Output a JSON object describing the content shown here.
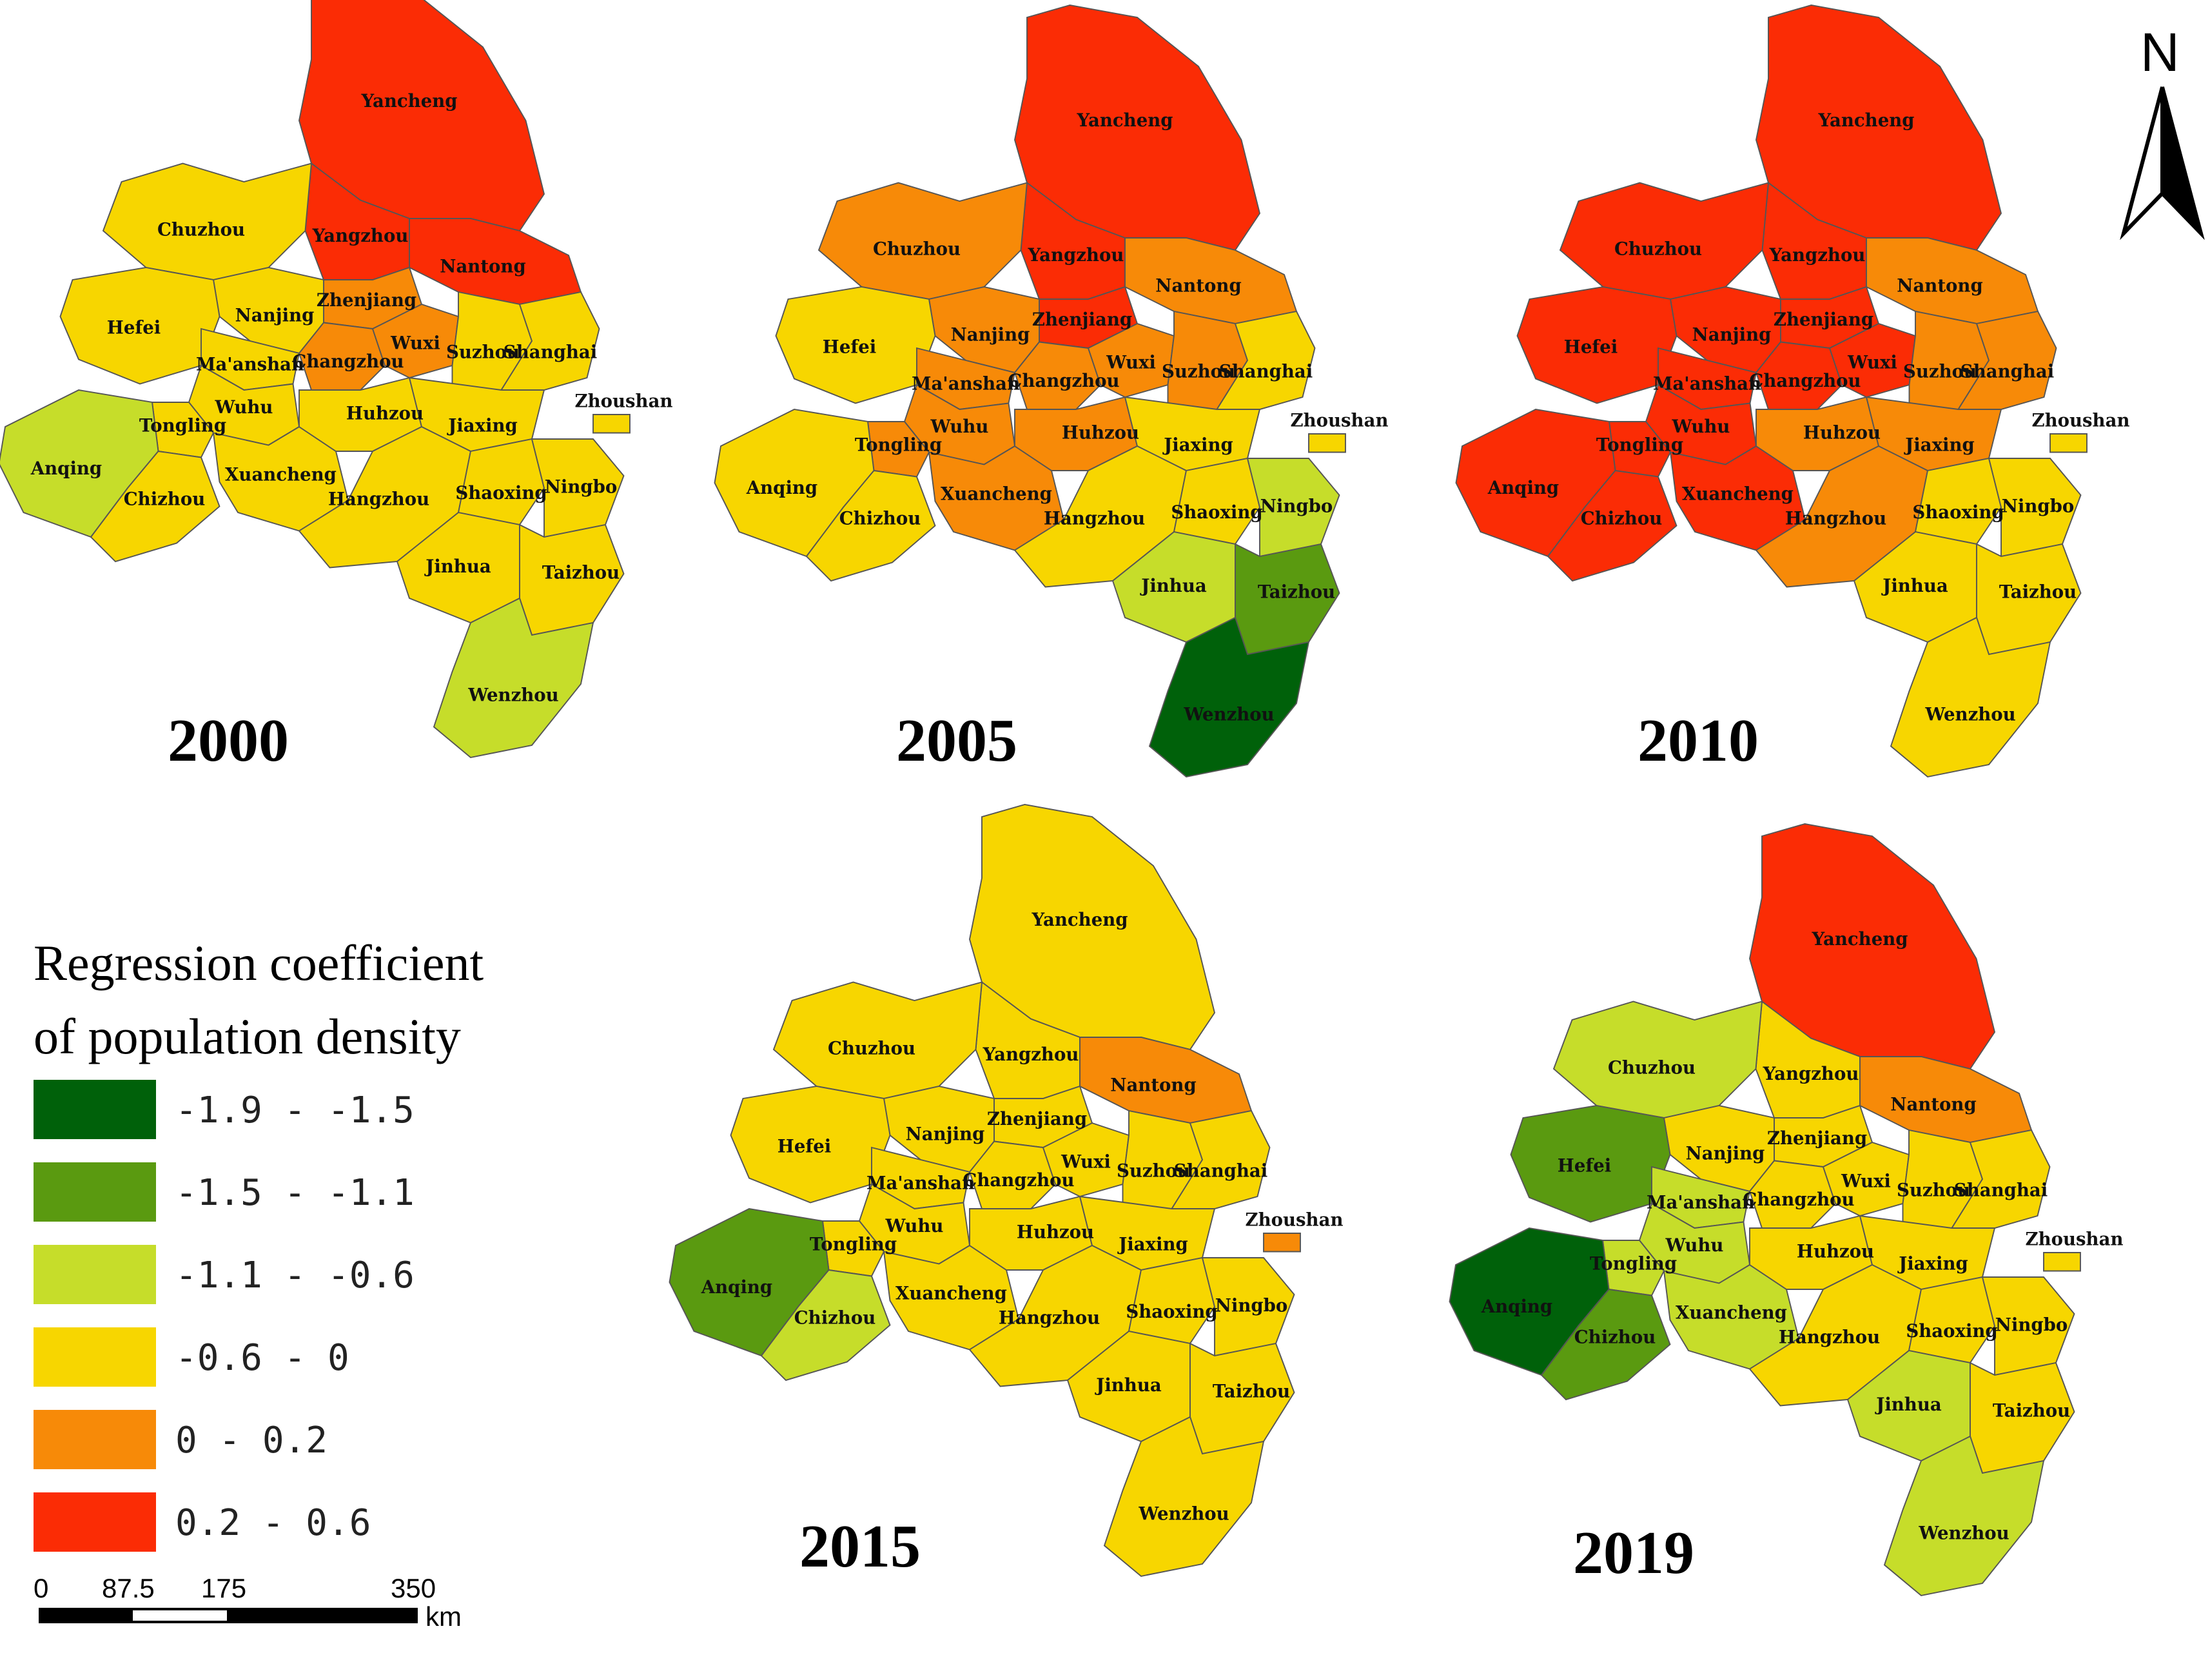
{
  "legend": {
    "title_line1": "Regression coefficient",
    "title_line2": "of population density",
    "classes": [
      {
        "range": "-1.9 - -1.5",
        "color": "#00610a"
      },
      {
        "range": "-1.5 - -1.1",
        "color": "#5a9a10"
      },
      {
        "range": "-1.1 - -0.6",
        "color": "#c6dd2a"
      },
      {
        "range": "-0.6 - 0",
        "color": "#f7d600"
      },
      {
        "range": "0 - 0.2",
        "color": "#f78a08"
      },
      {
        "range": "0.2 - 0.6",
        "color": "#fb2c05"
      }
    ]
  },
  "scale_bar": {
    "ticks": [
      "0",
      "87.5",
      "175",
      "350"
    ],
    "unit": "km"
  },
  "north_arrow": {
    "label": "N"
  },
  "maps": [
    {
      "year": "2000",
      "classes": {
        "Yancheng": 5,
        "Yangzhou": 5,
        "Nantong": 5,
        "Zhenjiang": 4,
        "Changzhou": 4,
        "Wuxi": 4,
        "Chuzhou": 3,
        "Nanjing": 3,
        "Hefei": 3,
        "Ma'anshan": 3,
        "Suzhou": 3,
        "Shanghai": 3,
        "Wuhu": 3,
        "Tongling": 3,
        "Xuancheng": 3,
        "Huhzou": 3,
        "Jiaxing": 3,
        "Anqing": 2,
        "Chizhou": 3,
        "Hangzhou": 3,
        "Shaoxing": 3,
        "Ningbo": 3,
        "Zhoushan": 3,
        "Jinhua": 3,
        "Taizhou": 3,
        "Wenzhou": 2
      }
    },
    {
      "year": "2005",
      "classes": {
        "Yancheng": 5,
        "Yangzhou": 5,
        "Nantong": 4,
        "Zhenjiang": 5,
        "Changzhou": 4,
        "Wuxi": 4,
        "Chuzhou": 4,
        "Nanjing": 4,
        "Hefei": 3,
        "Ma'anshan": 4,
        "Suzhou": 4,
        "Shanghai": 3,
        "Wuhu": 4,
        "Tongling": 4,
        "Xuancheng": 4,
        "Huhzou": 4,
        "Jiaxing": 3,
        "Anqing": 3,
        "Chizhou": 3,
        "Hangzhou": 3,
        "Shaoxing": 3,
        "Ningbo": 2,
        "Zhoushan": 3,
        "Jinhua": 2,
        "Taizhou": 1,
        "Wenzhou": 0
      }
    },
    {
      "year": "2010",
      "classes": {
        "Yancheng": 5,
        "Yangzhou": 5,
        "Nantong": 4,
        "Zhenjiang": 5,
        "Changzhou": 5,
        "Wuxi": 5,
        "Chuzhou": 5,
        "Nanjing": 5,
        "Hefei": 5,
        "Ma'anshan": 5,
        "Suzhou": 4,
        "Shanghai": 4,
        "Wuhu": 5,
        "Tongling": 5,
        "Xuancheng": 5,
        "Huhzou": 4,
        "Jiaxing": 4,
        "Anqing": 5,
        "Chizhou": 5,
        "Hangzhou": 4,
        "Shaoxing": 3,
        "Ningbo": 3,
        "Zhoushan": 3,
        "Jinhua": 3,
        "Taizhou": 3,
        "Wenzhou": 3
      }
    },
    {
      "year": "2015",
      "classes": {
        "Yancheng": 3,
        "Yangzhou": 3,
        "Nantong": 4,
        "Zhenjiang": 3,
        "Changzhou": 3,
        "Wuxi": 3,
        "Chuzhou": 3,
        "Nanjing": 3,
        "Hefei": 3,
        "Ma'anshan": 3,
        "Suzhou": 3,
        "Shanghai": 3,
        "Wuhu": 3,
        "Tongling": 3,
        "Xuancheng": 3,
        "Huhzou": 3,
        "Jiaxing": 3,
        "Anqing": 1,
        "Chizhou": 2,
        "Hangzhou": 3,
        "Shaoxing": 3,
        "Ningbo": 3,
        "Zhoushan": 4,
        "Jinhua": 3,
        "Taizhou": 3,
        "Wenzhou": 3
      }
    },
    {
      "year": "2019",
      "classes": {
        "Yancheng": 5,
        "Yangzhou": 3,
        "Nantong": 4,
        "Zhenjiang": 3,
        "Changzhou": 3,
        "Wuxi": 3,
        "Chuzhou": 2,
        "Nanjing": 3,
        "Hefei": 1,
        "Ma'anshan": 2,
        "Suzhou": 3,
        "Shanghai": 3,
        "Wuhu": 2,
        "Tongling": 2,
        "Xuancheng": 2,
        "Huhzou": 3,
        "Jiaxing": 3,
        "Anqing": 0,
        "Chizhou": 1,
        "Hangzhou": 3,
        "Shaoxing": 3,
        "Ningbo": 3,
        "Zhoushan": 3,
        "Jinhua": 2,
        "Taizhou": 3,
        "Wenzhou": 2
      }
    }
  ]
}
